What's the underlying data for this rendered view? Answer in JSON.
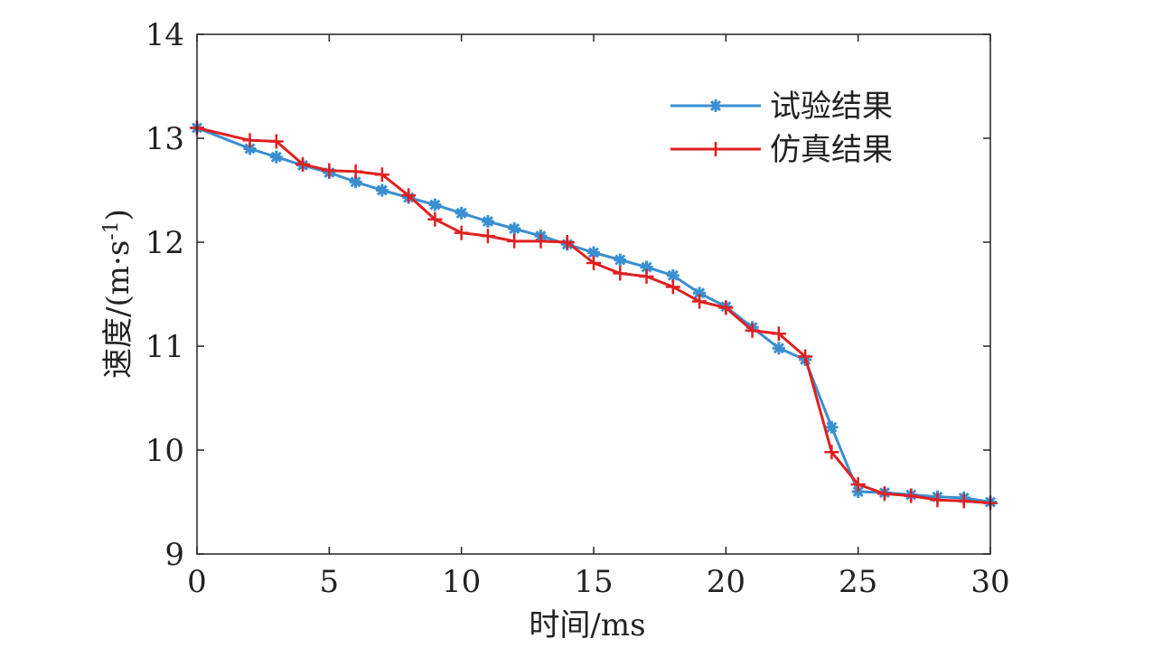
{
  "chart_data": {
    "type": "line",
    "xlabel": "时间/ms",
    "ylabel_main": "速度/(m·s",
    "ylabel_sup": "-1",
    "ylabel_close": ")",
    "xlim": [
      0,
      30
    ],
    "ylim": [
      9,
      14
    ],
    "xticks": [
      0,
      5,
      10,
      15,
      20,
      25,
      30
    ],
    "yticks": [
      9,
      10,
      11,
      12,
      13,
      14
    ],
    "grid": false,
    "legend_position": "top-right",
    "series": [
      {
        "name": "试验结果",
        "color": "#3a8fd0",
        "marker": "asterisk",
        "points": [
          [
            0,
            13.1
          ],
          [
            2,
            12.9
          ],
          [
            3,
            12.82
          ],
          [
            4,
            12.74
          ],
          [
            5,
            12.67
          ],
          [
            6,
            12.58
          ],
          [
            7,
            12.5
          ],
          [
            8,
            12.43
          ],
          [
            9,
            12.36
          ],
          [
            10,
            12.28
          ],
          [
            11,
            12.2
          ],
          [
            12,
            12.13
          ],
          [
            13,
            12.06
          ],
          [
            14,
            11.98
          ],
          [
            15,
            11.9
          ],
          [
            16,
            11.83
          ],
          [
            17,
            11.76
          ],
          [
            18,
            11.68
          ],
          [
            19,
            11.51
          ],
          [
            20,
            11.38
          ],
          [
            21,
            11.18
          ],
          [
            22,
            10.98
          ],
          [
            23,
            10.87
          ],
          [
            24,
            10.22
          ],
          [
            25,
            9.6
          ],
          [
            26,
            9.59
          ],
          [
            27,
            9.57
          ],
          [
            28,
            9.55
          ],
          [
            29,
            9.54
          ],
          [
            30,
            9.5
          ]
        ]
      },
      {
        "name": "仿真结果",
        "color": "#e02020",
        "marker": "plus",
        "points": [
          [
            0,
            13.1
          ],
          [
            2,
            12.98
          ],
          [
            3,
            12.97
          ],
          [
            4,
            12.75
          ],
          [
            5,
            12.69
          ],
          [
            6,
            12.68
          ],
          [
            7,
            12.65
          ],
          [
            8,
            12.45
          ],
          [
            9,
            12.22
          ],
          [
            10,
            12.09
          ],
          [
            11,
            12.06
          ],
          [
            12,
            12.01
          ],
          [
            13,
            12.01
          ],
          [
            14,
            12.0
          ],
          [
            15,
            11.8
          ],
          [
            16,
            11.7
          ],
          [
            17,
            11.67
          ],
          [
            18,
            11.57
          ],
          [
            19,
            11.43
          ],
          [
            20,
            11.37
          ],
          [
            21,
            11.15
          ],
          [
            22,
            11.12
          ],
          [
            23,
            10.9
          ],
          [
            24,
            9.98
          ],
          [
            25,
            9.67
          ],
          [
            26,
            9.58
          ],
          [
            27,
            9.56
          ],
          [
            28,
            9.52
          ],
          [
            29,
            9.51
          ],
          [
            30,
            9.49
          ]
        ]
      }
    ]
  }
}
